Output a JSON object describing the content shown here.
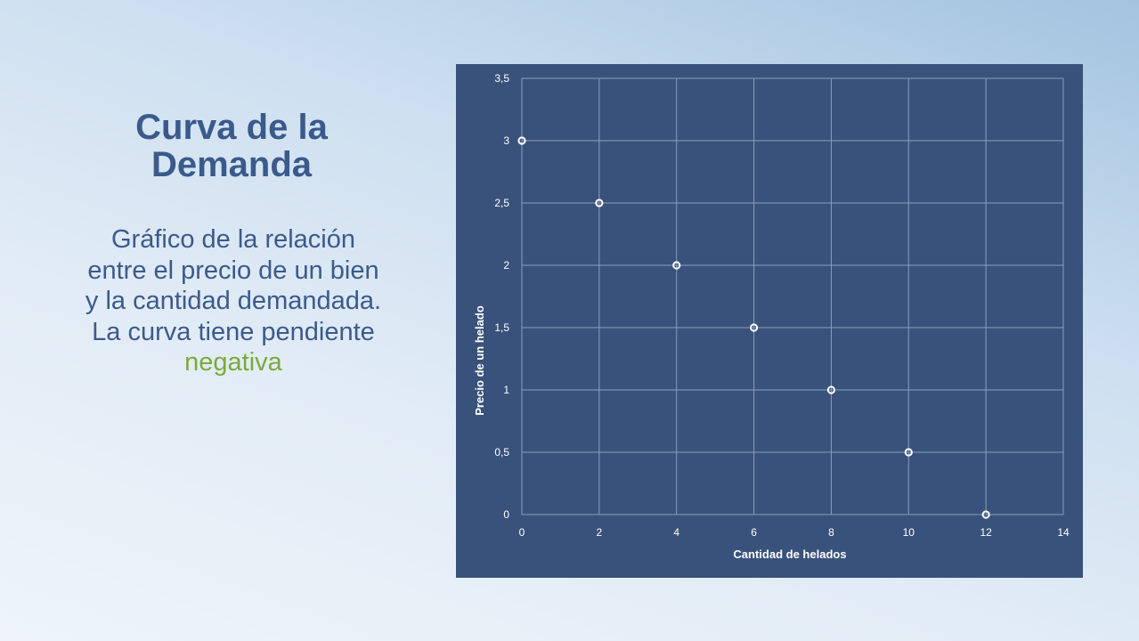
{
  "slide": {
    "title_lines": [
      "Curva de la",
      "Demanda"
    ],
    "description_lines": [
      "Gráfico de la relación",
      "entre el precio de un bien",
      "y la cantidad demandada.",
      "La curva tiene pendiente"
    ],
    "accent_word": "negativa",
    "colors": {
      "title": "#3b5a8c",
      "accent": "#7aaa3c",
      "chart_background": "#39527b",
      "gridline": "#8a9dbd",
      "marker": "#ffffff"
    }
  },
  "chart_data": {
    "type": "scatter",
    "title": "",
    "xlabel": "Cantidad de helados",
    "ylabel": "Precio de un helado",
    "xlim": [
      0,
      14
    ],
    "ylim": [
      0,
      3.5
    ],
    "x_ticks": [
      0,
      2,
      4,
      6,
      8,
      10,
      12,
      14
    ],
    "y_ticks": [
      0,
      0.5,
      1,
      1.5,
      2,
      2.5,
      3,
      3.5
    ],
    "x_tick_labels": [
      "0",
      "2",
      "4",
      "6",
      "8",
      "10",
      "12",
      "14"
    ],
    "y_tick_labels": [
      "0",
      "0,5",
      "1",
      "1,5",
      "2",
      "2,5",
      "3",
      "3,5"
    ],
    "grid": true,
    "legend": "none",
    "series": [
      {
        "points": [
          {
            "x": 0,
            "y": 3
          },
          {
            "x": 2,
            "y": 2.5
          },
          {
            "x": 4,
            "y": 2
          },
          {
            "x": 6,
            "y": 1.5
          },
          {
            "x": 8,
            "y": 1
          },
          {
            "x": 10,
            "y": 0.5
          },
          {
            "x": 12,
            "y": 0
          }
        ]
      }
    ]
  }
}
